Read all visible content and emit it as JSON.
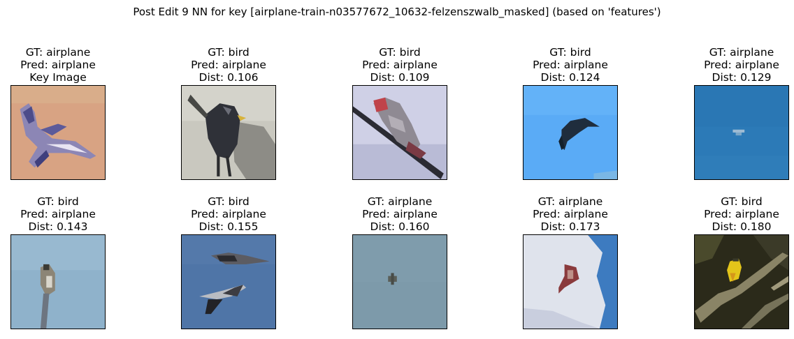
{
  "figure": {
    "title": "Post Edit 9 NN for key [airplane-train-n03577672_10632-felzenszwalb_masked] (based on 'features')"
  },
  "panels": [
    {
      "gt": "GT: airplane",
      "pred": "Pred: airplane",
      "extra": "Key Image",
      "image": "airplane-jet-on-tan"
    },
    {
      "gt": "GT: bird",
      "pred": "Pred: airplane",
      "extra": "Dist: 0.106",
      "image": "crow-on-gray"
    },
    {
      "gt": "GT: bird",
      "pred": "Pred: airplane",
      "extra": "Dist: 0.109",
      "image": "bird-on-branch-lavender"
    },
    {
      "gt": "GT: bird",
      "pred": "Pred: airplane",
      "extra": "Dist: 0.124",
      "image": "swallow-on-blue-sky"
    },
    {
      "gt": "GT: airplane",
      "pred": "Pred: airplane",
      "extra": "Dist: 0.129",
      "image": "tiny-plane-on-blue"
    },
    {
      "gt": "GT: bird",
      "pred": "Pred: airplane",
      "extra": "Dist: 0.143",
      "image": "bird-on-pole-sky"
    },
    {
      "gt": "GT: bird",
      "pred": "Pred: airplane",
      "extra": "Dist: 0.155",
      "image": "two-birds-flying"
    },
    {
      "gt": "GT: airplane",
      "pred": "Pred: airplane",
      "extra": "Dist: 0.160",
      "image": "distant-plane-gray"
    },
    {
      "gt": "GT: airplane",
      "pred": "Pred: airplane",
      "extra": "Dist: 0.173",
      "image": "plane-in-clouds"
    },
    {
      "gt": "GT: bird",
      "pred": "Pred: airplane",
      "extra": "Dist: 0.180",
      "image": "yellow-bird-in-branches"
    }
  ]
}
